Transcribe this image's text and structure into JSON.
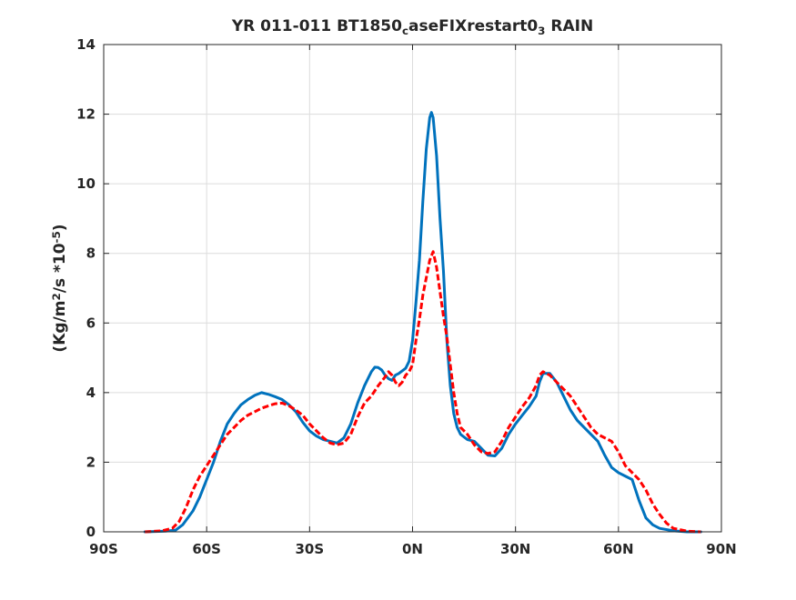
{
  "chart_data": {
    "type": "line",
    "title": {
      "parts": [
        {
          "text": "YR 011-011 BT1850",
          "style": "normal"
        },
        {
          "text": "c",
          "style": "sub"
        },
        {
          "text": "aseFIXrestart0",
          "style": "normal"
        },
        {
          "text": "3",
          "style": "sub"
        },
        {
          "text": " RAIN",
          "style": "normal"
        }
      ]
    },
    "ylabel": {
      "parts": [
        {
          "text": "(Kg/m",
          "style": "normal"
        },
        {
          "text": "2",
          "style": "sup"
        },
        {
          "text": "/s   *10",
          "style": "normal"
        },
        {
          "text": "-5",
          "style": "sup"
        },
        {
          "text": ")",
          "style": "normal"
        }
      ]
    },
    "xlabel": "",
    "xlim": [
      -90,
      90
    ],
    "ylim": [
      0,
      14
    ],
    "xticks": [
      {
        "value": -90,
        "label": "90S"
      },
      {
        "value": -60,
        "label": "60S"
      },
      {
        "value": -30,
        "label": "30S"
      },
      {
        "value": 0,
        "label": "0N"
      },
      {
        "value": 30,
        "label": "30N"
      },
      {
        "value": 60,
        "label": "60N"
      },
      {
        "value": 90,
        "label": "90N"
      }
    ],
    "yticks": [
      {
        "value": 0,
        "label": "0"
      },
      {
        "value": 2,
        "label": "2"
      },
      {
        "value": 4,
        "label": "4"
      },
      {
        "value": 6,
        "label": "6"
      },
      {
        "value": 8,
        "label": "8"
      },
      {
        "value": 10,
        "label": "10"
      },
      {
        "value": 12,
        "label": "12"
      },
      {
        "value": 14,
        "label": "14"
      }
    ],
    "grid": true,
    "series": [
      {
        "color": "#0072bd",
        "style": "solid",
        "points": [
          [
            -78,
            0.0
          ],
          [
            -72,
            0.02
          ],
          [
            -69,
            0.05
          ],
          [
            -67,
            0.2
          ],
          [
            -64,
            0.6
          ],
          [
            -62,
            1.0
          ],
          [
            -60,
            1.5
          ],
          [
            -58,
            2.0
          ],
          [
            -56,
            2.6
          ],
          [
            -54,
            3.1
          ],
          [
            -52,
            3.4
          ],
          [
            -50,
            3.65
          ],
          [
            -48,
            3.8
          ],
          [
            -46,
            3.92
          ],
          [
            -44,
            4.0
          ],
          [
            -42,
            3.95
          ],
          [
            -40,
            3.88
          ],
          [
            -38,
            3.8
          ],
          [
            -36,
            3.65
          ],
          [
            -34,
            3.45
          ],
          [
            -32,
            3.15
          ],
          [
            -30,
            2.9
          ],
          [
            -28,
            2.75
          ],
          [
            -26,
            2.65
          ],
          [
            -24,
            2.6
          ],
          [
            -22,
            2.55
          ],
          [
            -20,
            2.7
          ],
          [
            -18,
            3.1
          ],
          [
            -16,
            3.7
          ],
          [
            -14,
            4.2
          ],
          [
            -12,
            4.6
          ],
          [
            -11,
            4.73
          ],
          [
            -10,
            4.72
          ],
          [
            -9,
            4.65
          ],
          [
            -8,
            4.5
          ],
          [
            -7,
            4.4
          ],
          [
            -6,
            4.35
          ],
          [
            -5,
            4.5
          ],
          [
            -4,
            4.55
          ],
          [
            -2,
            4.7
          ],
          [
            -1,
            4.9
          ],
          [
            0,
            5.5
          ],
          [
            1,
            6.6
          ],
          [
            2,
            7.8
          ],
          [
            3,
            9.5
          ],
          [
            4,
            11.0
          ],
          [
            5,
            11.9
          ],
          [
            5.5,
            12.05
          ],
          [
            6,
            11.9
          ],
          [
            7,
            10.8
          ],
          [
            8,
            9.0
          ],
          [
            9,
            7.5
          ],
          [
            10,
            5.5
          ],
          [
            11,
            4.2
          ],
          [
            12,
            3.4
          ],
          [
            13,
            3.0
          ],
          [
            14,
            2.8
          ],
          [
            16,
            2.65
          ],
          [
            18,
            2.6
          ],
          [
            20,
            2.4
          ],
          [
            22,
            2.2
          ],
          [
            24,
            2.18
          ],
          [
            26,
            2.4
          ],
          [
            28,
            2.8
          ],
          [
            30,
            3.1
          ],
          [
            32,
            3.35
          ],
          [
            34,
            3.6
          ],
          [
            36,
            3.9
          ],
          [
            37,
            4.3
          ],
          [
            38,
            4.55
          ],
          [
            40,
            4.55
          ],
          [
            42,
            4.3
          ],
          [
            44,
            3.9
          ],
          [
            46,
            3.5
          ],
          [
            48,
            3.2
          ],
          [
            50,
            3.0
          ],
          [
            52,
            2.8
          ],
          [
            54,
            2.6
          ],
          [
            56,
            2.2
          ],
          [
            58,
            1.85
          ],
          [
            60,
            1.7
          ],
          [
            62,
            1.6
          ],
          [
            64,
            1.5
          ],
          [
            66,
            0.9
          ],
          [
            68,
            0.4
          ],
          [
            70,
            0.2
          ],
          [
            72,
            0.1
          ],
          [
            76,
            0.03
          ],
          [
            80,
            0.0
          ],
          [
            84,
            0.0
          ]
        ]
      },
      {
        "color": "#ff0000",
        "style": "dashed",
        "points": [
          [
            -78,
            0.0
          ],
          [
            -73,
            0.03
          ],
          [
            -70,
            0.1
          ],
          [
            -68,
            0.3
          ],
          [
            -66,
            0.7
          ],
          [
            -64,
            1.2
          ],
          [
            -62,
            1.6
          ],
          [
            -60,
            1.9
          ],
          [
            -58,
            2.2
          ],
          [
            -56,
            2.5
          ],
          [
            -54,
            2.8
          ],
          [
            -52,
            3.0
          ],
          [
            -50,
            3.2
          ],
          [
            -48,
            3.35
          ],
          [
            -46,
            3.45
          ],
          [
            -44,
            3.55
          ],
          [
            -42,
            3.62
          ],
          [
            -40,
            3.68
          ],
          [
            -38,
            3.7
          ],
          [
            -36,
            3.62
          ],
          [
            -34,
            3.5
          ],
          [
            -32,
            3.35
          ],
          [
            -30,
            3.1
          ],
          [
            -28,
            2.9
          ],
          [
            -26,
            2.7
          ],
          [
            -24,
            2.55
          ],
          [
            -22,
            2.5
          ],
          [
            -20,
            2.55
          ],
          [
            -18,
            2.8
          ],
          [
            -16,
            3.3
          ],
          [
            -14,
            3.7
          ],
          [
            -12,
            3.9
          ],
          [
            -10,
            4.2
          ],
          [
            -8,
            4.45
          ],
          [
            -7,
            4.6
          ],
          [
            -6,
            4.5
          ],
          [
            -5,
            4.3
          ],
          [
            -4,
            4.2
          ],
          [
            -3,
            4.3
          ],
          [
            -2,
            4.5
          ],
          [
            -1,
            4.6
          ],
          [
            0,
            4.8
          ],
          [
            1,
            5.5
          ],
          [
            2,
            6.1
          ],
          [
            3,
            6.8
          ],
          [
            4,
            7.3
          ],
          [
            5,
            7.8
          ],
          [
            6,
            8.05
          ],
          [
            7,
            7.6
          ],
          [
            8,
            6.9
          ],
          [
            9,
            6.2
          ],
          [
            10,
            5.6
          ],
          [
            11,
            4.8
          ],
          [
            12,
            4.0
          ],
          [
            13,
            3.4
          ],
          [
            14,
            3.0
          ],
          [
            16,
            2.8
          ],
          [
            18,
            2.5
          ],
          [
            20,
            2.3
          ],
          [
            22,
            2.25
          ],
          [
            24,
            2.3
          ],
          [
            26,
            2.6
          ],
          [
            28,
            3.0
          ],
          [
            30,
            3.3
          ],
          [
            32,
            3.6
          ],
          [
            34,
            3.85
          ],
          [
            36,
            4.2
          ],
          [
            37,
            4.5
          ],
          [
            38,
            4.6
          ],
          [
            40,
            4.5
          ],
          [
            42,
            4.3
          ],
          [
            44,
            4.1
          ],
          [
            46,
            3.9
          ],
          [
            48,
            3.6
          ],
          [
            50,
            3.3
          ],
          [
            52,
            3.0
          ],
          [
            54,
            2.8
          ],
          [
            56,
            2.7
          ],
          [
            58,
            2.6
          ],
          [
            60,
            2.3
          ],
          [
            62,
            1.9
          ],
          [
            64,
            1.7
          ],
          [
            66,
            1.5
          ],
          [
            68,
            1.2
          ],
          [
            70,
            0.8
          ],
          [
            72,
            0.5
          ],
          [
            74,
            0.25
          ],
          [
            76,
            0.1
          ],
          [
            80,
            0.02
          ],
          [
            84,
            0.0
          ]
        ]
      }
    ]
  }
}
